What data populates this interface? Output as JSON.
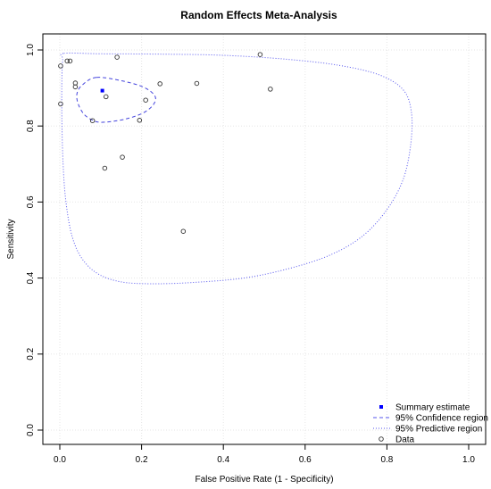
{
  "chart_data": {
    "type": "scatter",
    "title": "Random Effects Meta-Analysis",
    "xlabel": "False Positive Rate (1 - Specificity)",
    "ylabel": "Sensitivity",
    "xlim": [
      0,
      1
    ],
    "ylim": [
      0,
      1
    ],
    "x_ticks": [
      "0.0",
      "0.2",
      "0.4",
      "0.6",
      "0.8",
      "1.0"
    ],
    "y_ticks": [
      "0.0",
      "0.2",
      "0.4",
      "0.6",
      "0.8",
      "1.0"
    ],
    "grid": true,
    "legend_position": "bottom-right",
    "legend": [
      {
        "label": "Summary estimate",
        "kind": "square",
        "color": "#0000ff"
      },
      {
        "label": "95% Confidence region",
        "kind": "dashed",
        "color": "#5555ee"
      },
      {
        "label": "95% Predictive region",
        "kind": "dotted",
        "color": "#5555ee"
      },
      {
        "label": "Data",
        "kind": "circle",
        "color": "#333333"
      }
    ],
    "summary_estimate": {
      "x": 0.104,
      "y": 0.893
    },
    "data_points": [
      {
        "x": 0.002,
        "y": 0.958
      },
      {
        "x": 0.018,
        "y": 0.971
      },
      {
        "x": 0.025,
        "y": 0.971
      },
      {
        "x": 0.002,
        "y": 0.858
      },
      {
        "x": 0.038,
        "y": 0.913
      },
      {
        "x": 0.038,
        "y": 0.903
      },
      {
        "x": 0.08,
        "y": 0.814
      },
      {
        "x": 0.113,
        "y": 0.877
      },
      {
        "x": 0.14,
        "y": 0.981
      },
      {
        "x": 0.195,
        "y": 0.815
      },
      {
        "x": 0.21,
        "y": 0.868
      },
      {
        "x": 0.245,
        "y": 0.911
      },
      {
        "x": 0.335,
        "y": 0.912
      },
      {
        "x": 0.49,
        "y": 0.988
      },
      {
        "x": 0.515,
        "y": 0.897
      },
      {
        "x": 0.153,
        "y": 0.718
      },
      {
        "x": 0.11,
        "y": 0.689
      },
      {
        "x": 0.302,
        "y": 0.523
      }
    ],
    "confidence_region": [
      [
        0.09,
        0.928
      ],
      [
        0.155,
        0.918
      ],
      [
        0.205,
        0.902
      ],
      [
        0.232,
        0.88
      ],
      [
        0.23,
        0.858
      ],
      [
        0.205,
        0.835
      ],
      [
        0.16,
        0.818
      ],
      [
        0.11,
        0.81
      ],
      [
        0.085,
        0.813
      ],
      [
        0.06,
        0.83
      ],
      [
        0.045,
        0.858
      ],
      [
        0.042,
        0.885
      ],
      [
        0.055,
        0.908
      ],
      [
        0.09,
        0.928
      ]
    ],
    "predictive_region": [
      [
        0.01,
        0.991
      ],
      [
        0.1,
        0.99
      ],
      [
        0.25,
        0.989
      ],
      [
        0.4,
        0.986
      ],
      [
        0.55,
        0.976
      ],
      [
        0.68,
        0.96
      ],
      [
        0.78,
        0.935
      ],
      [
        0.84,
        0.895
      ],
      [
        0.86,
        0.835
      ],
      [
        0.858,
        0.75
      ],
      [
        0.84,
        0.66
      ],
      [
        0.8,
        0.58
      ],
      [
        0.74,
        0.51
      ],
      [
        0.66,
        0.46
      ],
      [
        0.56,
        0.425
      ],
      [
        0.45,
        0.4
      ],
      [
        0.32,
        0.388
      ],
      [
        0.22,
        0.385
      ],
      [
        0.15,
        0.39
      ],
      [
        0.095,
        0.41
      ],
      [
        0.055,
        0.45
      ],
      [
        0.03,
        0.51
      ],
      [
        0.015,
        0.6
      ],
      [
        0.008,
        0.7
      ],
      [
        0.005,
        0.82
      ],
      [
        0.005,
        0.92
      ],
      [
        0.007,
        0.975
      ],
      [
        0.01,
        0.991
      ]
    ]
  }
}
